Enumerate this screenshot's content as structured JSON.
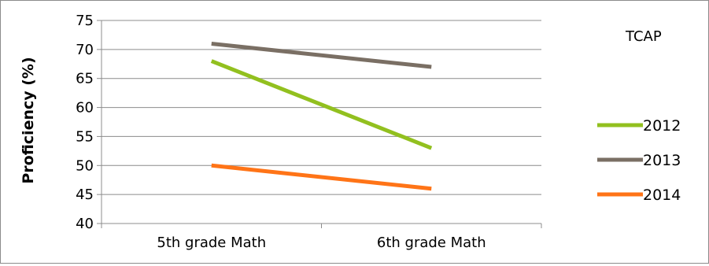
{
  "chart_data": {
    "type": "line",
    "title": "",
    "categories": [
      "5th grade Math",
      "6th grade Math"
    ],
    "series": [
      {
        "name": "2012",
        "values": [
          68,
          53
        ],
        "color": "#92c01f"
      },
      {
        "name": "2013",
        "values": [
          71,
          67
        ],
        "color": "#7a6f64"
      },
      {
        "name": "2014",
        "values": [
          50,
          46
        ],
        "color": "#ff7417"
      }
    ],
    "xlabel": "",
    "ylabel": "Proficiency (%)",
    "ylim": [
      40,
      75
    ],
    "yticks": [
      40,
      45,
      50,
      55,
      60,
      65,
      70,
      75
    ],
    "grid": true,
    "legend": {
      "title": "TCAP",
      "placement": "right"
    }
  }
}
